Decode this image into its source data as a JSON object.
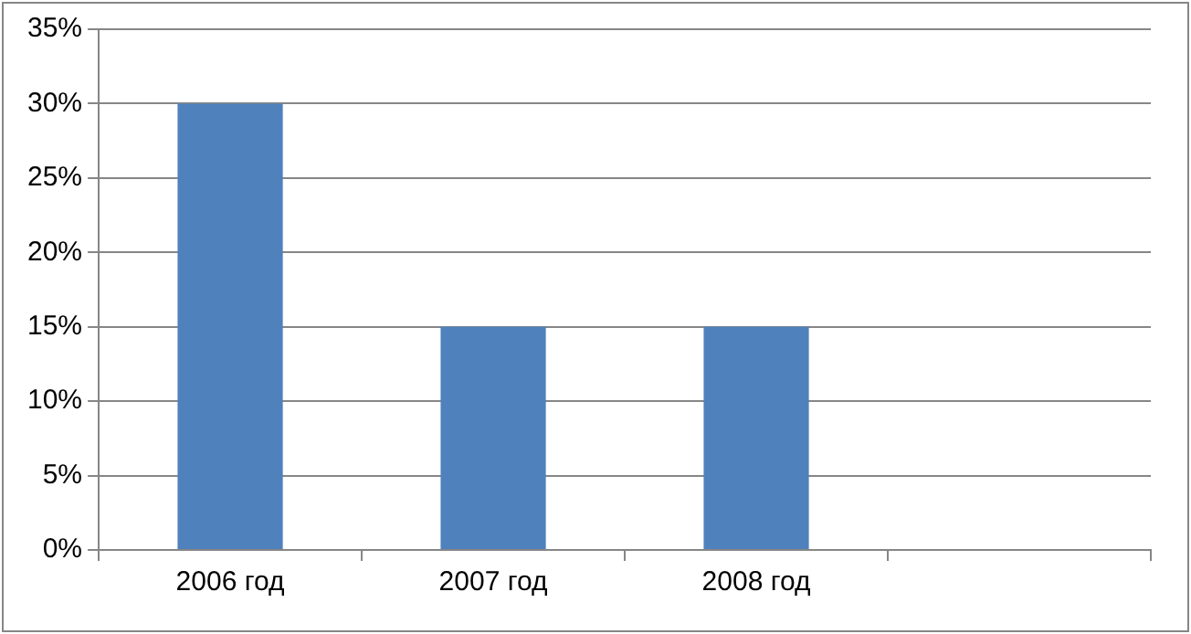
{
  "chart_data": {
    "type": "bar",
    "categories": [
      "2006 год",
      "2007 год",
      "2008 год",
      null
    ],
    "values": [
      30,
      15,
      15,
      null
    ],
    "color": "#4f81bd",
    "ylim": [
      0,
      35
    ],
    "yticks": [
      {
        "value": 0,
        "label": "0%"
      },
      {
        "value": 5,
        "label": "5%"
      },
      {
        "value": 10,
        "label": "10%"
      },
      {
        "value": 15,
        "label": "15%"
      },
      {
        "value": 20,
        "label": "20%"
      },
      {
        "value": 25,
        "label": "25%"
      },
      {
        "value": 30,
        "label": "30%"
      },
      {
        "value": 35,
        "label": "35%"
      }
    ],
    "grid": "y",
    "legend": false
  }
}
